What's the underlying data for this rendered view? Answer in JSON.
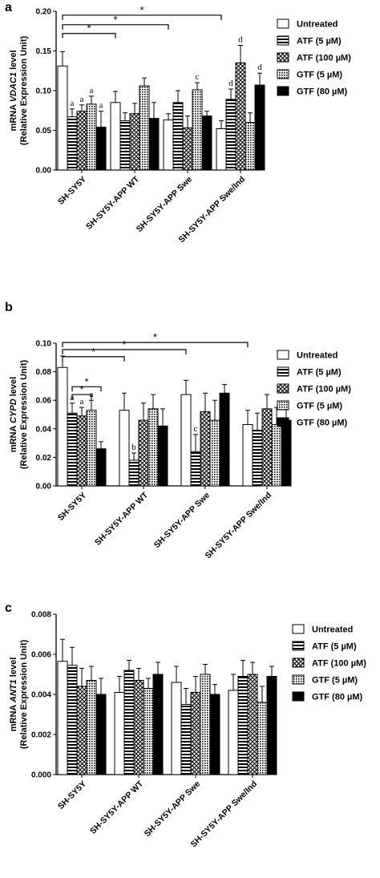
{
  "colors": {
    "ink": "#000000",
    "background": "#ffffff"
  },
  "legend_items": [
    "Untreated",
    "ATF (5 µM)",
    "ATF (100 µM)",
    "GTF (5 µM)",
    "GTF (80 µM)"
  ],
  "fill_patterns": [
    "white",
    "horizontal-stripes",
    "crosshatch",
    "dotted-grid",
    "black"
  ],
  "chart_data": [
    {
      "panel": "a",
      "type": "bar",
      "ylabel_prefix": "mRNA ",
      "ylabel_gene": "VDAC1",
      "ylabel_suffix": " level",
      "ylabel_line2": "(Relative Expression Unit)",
      "ylim": [
        0,
        0.2
      ],
      "yticks": [
        "0.00",
        "0.05",
        "0.10",
        "0.15",
        "0.20"
      ],
      "categories": [
        "SH-SY5Y",
        "SH-SY5Y-APP WT",
        "SH-SY5Y-APP Swe",
        "SH-SY5Y-APP Swe/Ind"
      ],
      "series": [
        {
          "name": "Untreated",
          "values": [
            0.131,
            0.085,
            0.063,
            0.052
          ],
          "errors": [
            0.018,
            0.014,
            0.008,
            0.01
          ]
        },
        {
          "name": "ATF (5 µM)",
          "values": [
            0.067,
            0.062,
            0.085,
            0.089
          ],
          "errors": [
            0.01,
            0.01,
            0.015,
            0.013
          ]
        },
        {
          "name": "ATF (100 µM)",
          "values": [
            0.074,
            0.071,
            0.053,
            0.135
          ],
          "errors": [
            0.008,
            0.013,
            0.015,
            0.022
          ]
        },
        {
          "name": "GTF (5 µM)",
          "values": [
            0.083,
            0.106,
            0.101,
            0.06
          ],
          "errors": [
            0.01,
            0.01,
            0.009,
            0.012
          ]
        },
        {
          "name": "GTF (80 µM)",
          "values": [
            0.054,
            0.065,
            0.068,
            0.107
          ],
          "errors": [
            0.02,
            0.02,
            0.006,
            0.015
          ]
        }
      ],
      "annotations": [
        {
          "text": "a",
          "category": 0,
          "series": 1
        },
        {
          "text": "a",
          "category": 0,
          "series": 2
        },
        {
          "text": "a",
          "category": 0,
          "series": 3
        },
        {
          "text": "a",
          "category": 0,
          "series": 4
        },
        {
          "text": "c",
          "category": 2,
          "series": 3
        },
        {
          "text": "d",
          "category": 3,
          "series": 1
        },
        {
          "text": "d",
          "category": 3,
          "series": 2
        },
        {
          "text": "d",
          "category": 3,
          "series": 4
        }
      ],
      "significance": [
        {
          "from_category": 0,
          "to_category": 1,
          "level": 0.172,
          "label": "*"
        },
        {
          "from_category": 0,
          "to_category": 2,
          "level": 0.183,
          "label": "*"
        },
        {
          "from_category": 0,
          "to_category": 3,
          "level": 0.195,
          "label": "*"
        }
      ]
    },
    {
      "panel": "b",
      "type": "bar",
      "ylabel_prefix": "mRNA ",
      "ylabel_gene": "CYPD",
      "ylabel_suffix": " level",
      "ylabel_line2": "(Relative Expression Unit)",
      "ylim": [
        0,
        0.1
      ],
      "yticks": [
        "0.00",
        "0.02",
        "0.04",
        "0.06",
        "0.08",
        "0.10"
      ],
      "categories": [
        "SH-SY5Y",
        "SH-SY5Y-APP WT",
        "SH-SY5Y-APP Swe",
        "SH-SY5Y-APP Swe/Ind"
      ],
      "series": [
        {
          "name": "Untreated",
          "values": [
            0.083,
            0.053,
            0.064,
            0.043
          ],
          "errors": [
            0.008,
            0.012,
            0.01,
            0.01
          ]
        },
        {
          "name": "ATF (5 µM)",
          "values": [
            0.051,
            0.018,
            0.024,
            0.039
          ],
          "errors": [
            0.007,
            0.005,
            0.012,
            0.012
          ]
        },
        {
          "name": "ATF (100 µM)",
          "values": [
            0.049,
            0.046,
            0.052,
            0.054
          ],
          "errors": [
            0.006,
            0.012,
            0.013,
            0.01
          ]
        },
        {
          "name": "GTF (5 µM)",
          "values": [
            0.053,
            0.054,
            0.046,
            0.043
          ],
          "errors": [
            0.007,
            0.01,
            0.014,
            0.012
          ]
        },
        {
          "name": "GTF (80 µM)",
          "values": [
            0.026,
            0.042,
            0.065,
            0.046
          ],
          "errors": [
            0.005,
            0.012,
            0.006,
            0.01
          ]
        }
      ],
      "annotations": [
        {
          "text": "a",
          "category": 0,
          "series": 1
        },
        {
          "text": "a",
          "category": 0,
          "series": 2
        },
        {
          "text": "a",
          "category": 0,
          "series": 3
        },
        {
          "text": "b",
          "category": 1,
          "series": 1
        },
        {
          "text": "c",
          "category": 2,
          "series": 1
        }
      ],
      "significance": [
        {
          "from_category": 0,
          "from_series": 0,
          "to_category": 1,
          "to_series": 0,
          "level": 0.0905,
          "label": "*"
        },
        {
          "from_category": 0,
          "from_series": 0,
          "to_category": 2,
          "to_series": 0,
          "level": 0.0955,
          "label": "*"
        },
        {
          "from_category": 0,
          "from_series": 0,
          "to_category": 3,
          "to_series": 0,
          "level": 0.1005,
          "label": "*"
        },
        {
          "from_category": 0,
          "from_series": 1,
          "to_category": 0,
          "to_series": 4,
          "level": 0.0695,
          "label": "*"
        },
        {
          "from_category": 0,
          "from_series": 1,
          "to_category": 0,
          "to_series": 3,
          "level": 0.064,
          "label": "*"
        }
      ]
    },
    {
      "panel": "c",
      "type": "bar",
      "ylabel_prefix": "mRNA ",
      "ylabel_gene": "ANT1",
      "ylabel_suffix": " level",
      "ylabel_line2": "(Relative Expression Unit)",
      "ylim": [
        0,
        0.008
      ],
      "yticks": [
        "0.000",
        "0.002",
        "0.004",
        "0.006",
        "0.008"
      ],
      "categories": [
        "SH-SY5Y",
        "SH-SY5Y-APP WT",
        "SH-SY5Y-APP Swe",
        "SH-SY5Y-APP Swe/Ind"
      ],
      "series": [
        {
          "name": "Untreated",
          "values": [
            0.00565,
            0.0041,
            0.0046,
            0.0042
          ],
          "errors": [
            0.0011,
            0.0008,
            0.0008,
            0.0008
          ]
        },
        {
          "name": "ATF (5 µM)",
          "values": [
            0.00545,
            0.0052,
            0.0035,
            0.0049
          ],
          "errors": [
            0.0009,
            0.0005,
            0.0008,
            0.0008
          ]
        },
        {
          "name": "ATF (100 µM)",
          "values": [
            0.0044,
            0.0047,
            0.0041,
            0.005
          ],
          "errors": [
            0.0009,
            0.0006,
            0.0008,
            0.0006
          ]
        },
        {
          "name": "GTF (5 µM)",
          "values": [
            0.0047,
            0.0043,
            0.005,
            0.0036
          ],
          "errors": [
            0.0007,
            0.0005,
            0.0005,
            0.0008
          ]
        },
        {
          "name": "GTF (80 µM)",
          "values": [
            0.004,
            0.005,
            0.004,
            0.0049
          ],
          "errors": [
            0.0008,
            0.0006,
            0.0005,
            0.0005
          ]
        }
      ],
      "annotations": [],
      "significance": []
    }
  ]
}
